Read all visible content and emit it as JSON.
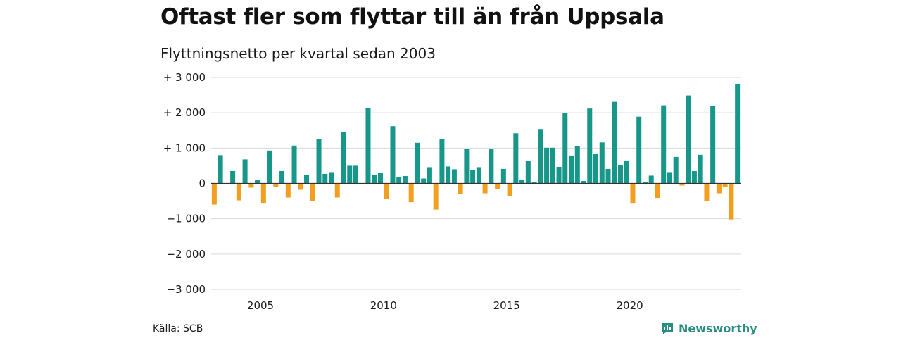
{
  "chart_data": {
    "type": "bar",
    "title": "Oftast fler som flyttar till än från Uppsala",
    "subtitle": "Flyttningsnetto per kvartal sedan 2003",
    "xlabel": "",
    "ylabel": "",
    "ylim": [
      -3000,
      3000
    ],
    "y_ticks": [
      3000,
      2000,
      1000,
      0,
      -1000,
      -2000,
      -3000
    ],
    "y_tick_labels": [
      "+ 3 000",
      "+ 2 000",
      "+ 1 000",
      "0",
      "−1 000",
      "−2 000",
      "−3 000"
    ],
    "x_tick_labels": [
      "2005",
      "2010",
      "2015",
      "2020"
    ],
    "x_tick_years": [
      2005,
      2010,
      2015,
      2020
    ],
    "start_year": 2003,
    "grid": true,
    "colors": {
      "positive": "#17968a",
      "negative": "#f29e1e",
      "grid": "#d9d9d9",
      "baseline": "#333333"
    },
    "values": [
      -600,
      800,
      0,
      350,
      -480,
      680,
      -120,
      100,
      -550,
      930,
      -100,
      350,
      -400,
      1070,
      -180,
      250,
      -500,
      1260,
      270,
      320,
      -400,
      1460,
      500,
      500,
      0,
      2130,
      250,
      300,
      -430,
      1620,
      190,
      210,
      -530,
      1150,
      140,
      460,
      -740,
      1260,
      480,
      400,
      -300,
      980,
      370,
      460,
      -280,
      970,
      -160,
      410,
      -350,
      1420,
      90,
      640,
      30,
      1540,
      1010,
      1010,
      470,
      1990,
      790,
      1060,
      70,
      2120,
      830,
      1160,
      410,
      2310,
      520,
      650,
      -550,
      1890,
      50,
      220,
      -410,
      2210,
      320,
      750,
      -60,
      2490,
      350,
      810,
      -500,
      2190,
      -280,
      -100,
      -1020,
      2800
    ]
  },
  "footer": {
    "source": "Källa: SCB",
    "brand": "Newsworthy"
  }
}
